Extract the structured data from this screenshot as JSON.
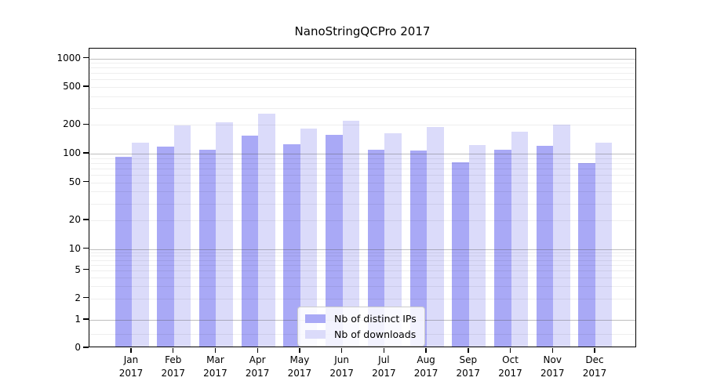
{
  "chart_data": {
    "type": "bar",
    "title": "NanoStringQCPro 2017",
    "categories": [
      "Jan",
      "Feb",
      "Mar",
      "Apr",
      "May",
      "Jun",
      "Jul",
      "Aug",
      "Sep",
      "Oct",
      "Nov",
      "Dec"
    ],
    "category_year": "2017",
    "series": [
      {
        "name": "Nb of distinct IPs",
        "color": "#a9a9f6",
        "values": [
          90,
          114,
          105,
          150,
          122,
          151,
          106,
          103,
          78,
          105,
          117,
          77
        ]
      },
      {
        "name": "Nb of downloads",
        "color": "#dbdbfa",
        "values": [
          125,
          190,
          204,
          252,
          177,
          213,
          159,
          185,
          119,
          164,
          195,
          125
        ]
      }
    ],
    "xlabel": "",
    "ylabel": "",
    "yaxis": {
      "scale": "symlog",
      "tick_labels": [
        0,
        1,
        2,
        5,
        10,
        20,
        50,
        100,
        200,
        500,
        1000
      ],
      "top_value": 1250
    },
    "grid": true,
    "legend_position": "lower center"
  }
}
